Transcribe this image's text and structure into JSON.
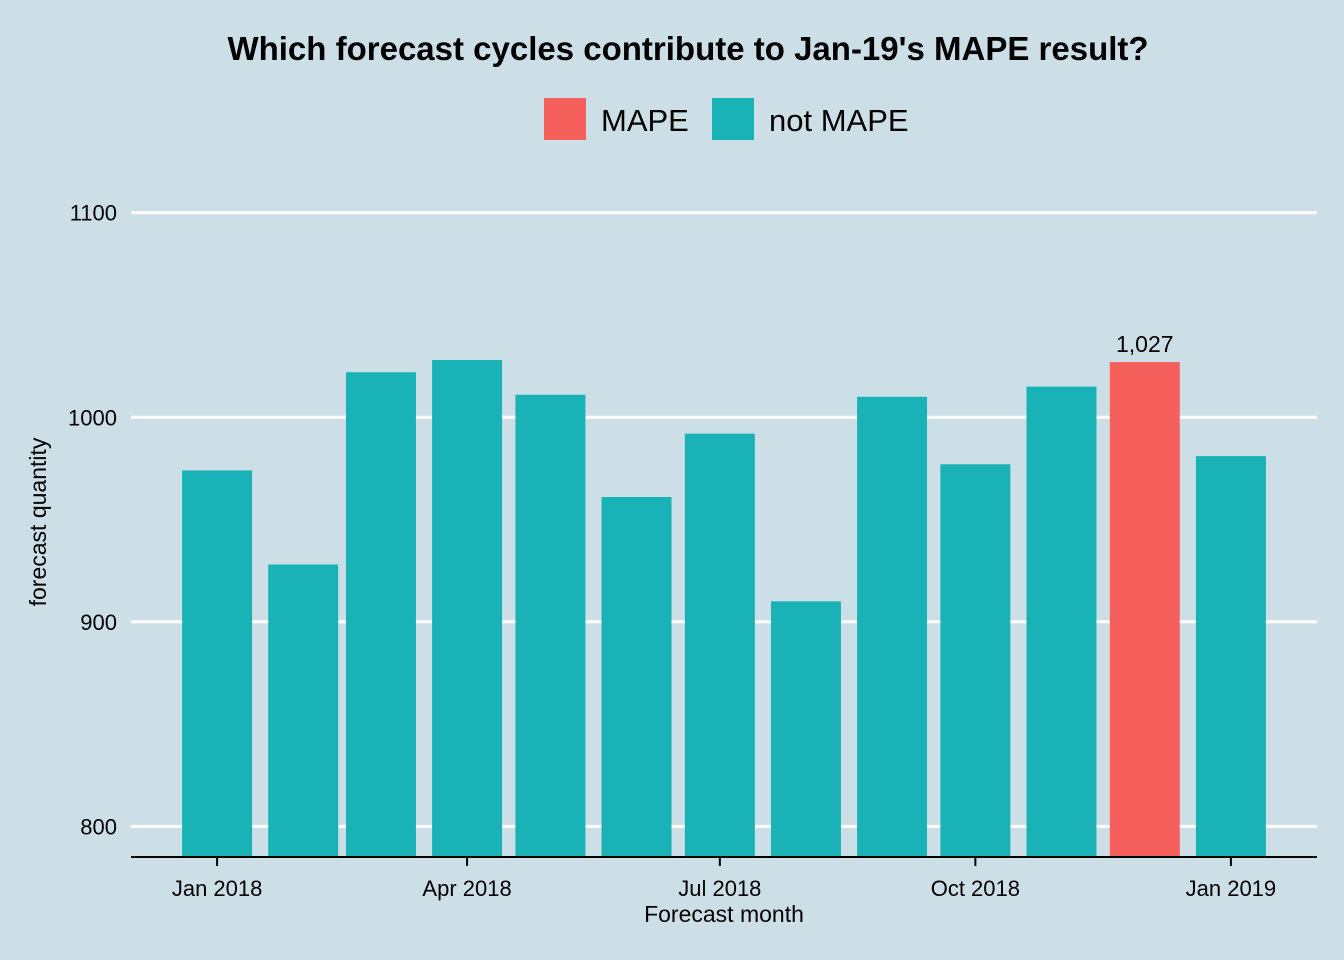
{
  "chart_data": {
    "type": "bar",
    "title": "Which forecast cycles contribute to Jan-19's MAPE result?",
    "x_label": "Forecast month",
    "y_label": "forecast quantity",
    "x": [
      "2018-01",
      "2018-02",
      "2018-03",
      "2018-04",
      "2018-05",
      "2018-06",
      "2018-07",
      "2018-08",
      "2018-09",
      "2018-10",
      "2018-11",
      "2018-12",
      "2019-01"
    ],
    "series": [
      {
        "name": "MAPE",
        "color": "#f5605c",
        "values": [
          null,
          null,
          null,
          null,
          null,
          null,
          null,
          null,
          null,
          null,
          null,
          1027,
          null
        ],
        "value_labels": [
          null,
          null,
          null,
          null,
          null,
          null,
          null,
          null,
          null,
          null,
          null,
          "1,027",
          null
        ]
      },
      {
        "name": "not MAPE",
        "color": "#19b2b6",
        "values": [
          974,
          928,
          1022,
          1028,
          1011,
          961,
          992,
          910,
          1010,
          977,
          1015,
          null,
          981
        ]
      }
    ],
    "xlim": [
      "2017-12",
      "2019-02"
    ],
    "xticks": [
      {
        "value": "2018-01",
        "label": "Jan 2018"
      },
      {
        "value": "2018-04",
        "label": "Apr 2018"
      },
      {
        "value": "2018-07",
        "label": "Jul 2018"
      },
      {
        "value": "2018-10",
        "label": "Oct 2018"
      },
      {
        "value": "2019-01",
        "label": "Jan 2019"
      }
    ],
    "ylim": [
      785,
      1116
    ],
    "yticks": [
      800,
      900,
      1000,
      1100
    ],
    "grid": true,
    "legend": "top"
  }
}
